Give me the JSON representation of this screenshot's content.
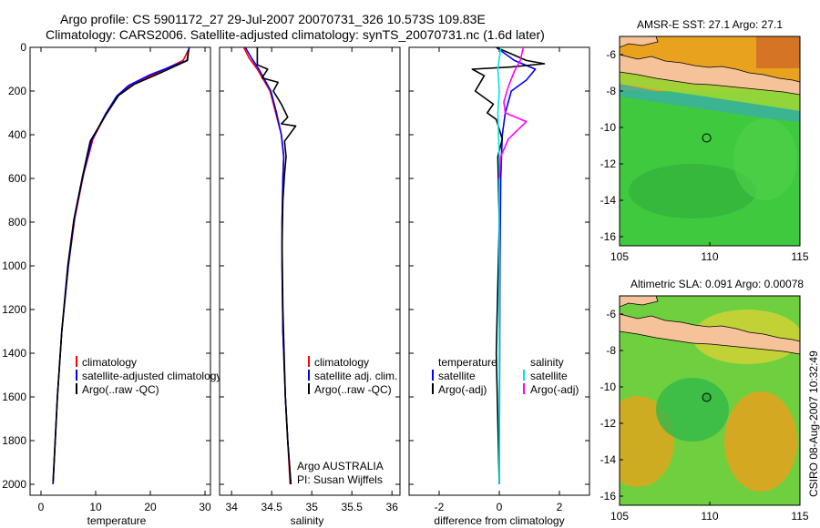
{
  "header": {
    "line1": "Argo profile: CS 5901172_27 29-Jul-2007 20070731_326 10.573S 109.83E",
    "line2": "Climatology: CARS2006. Satellite-adjusted climatology: synTS_20070731.nc (1.6d later)"
  },
  "side_stamp": "CSIRO 08-Aug-2007 10:32:49",
  "colors": {
    "climatology": "#ff0000",
    "satellite": "#0000ff",
    "argo": "#000000",
    "salinity_satellite": "#00e5e5",
    "salinity_argo": "#ff00ff",
    "land": "#f5c29a"
  },
  "chart_data": [
    {
      "type": "line",
      "xlabel": "temperature",
      "xlim": [
        -2,
        31
      ],
      "xticks": [
        0,
        10,
        20,
        30
      ],
      "ylim": [
        0,
        2050
      ],
      "yticks": [
        0,
        200,
        400,
        600,
        800,
        1000,
        1200,
        1400,
        1600,
        1800,
        2000
      ],
      "y_reversed": true,
      "legend": [
        "climatology",
        "satellite-adjusted climatology",
        "Argo(..raw -QC)"
      ],
      "series": [
        {
          "name": "climatology",
          "color": "#ff0000",
          "x": [
            27.2,
            26.0,
            21.0,
            16.5,
            14.0,
            12.0,
            9.5,
            7.8,
            6.2,
            5.0,
            3.8,
            3.0,
            2.6,
            2.2
          ],
          "y": [
            0,
            60,
            120,
            170,
            220,
            300,
            420,
            580,
            780,
            1000,
            1300,
            1600,
            1800,
            2000
          ]
        },
        {
          "name": "satellite-adjusted climatology",
          "color": "#0000ff",
          "x": [
            27.1,
            26.7,
            20.0,
            16.0,
            13.8,
            11.8,
            9.3,
            7.7,
            6.1,
            5.0,
            3.8,
            3.0,
            2.6,
            2.2
          ],
          "y": [
            0,
            60,
            125,
            175,
            225,
            305,
            425,
            585,
            785,
            1000,
            1300,
            1600,
            1800,
            2000
          ]
        },
        {
          "name": "Argo(..raw -QC)",
          "color": "#000000",
          "x": [
            27.0,
            26.8,
            22.0,
            17.0,
            14.2,
            12.1,
            9.0,
            7.6,
            6.0,
            4.9,
            3.8,
            3.0,
            2.6,
            2.2
          ],
          "y": [
            10,
            60,
            115,
            170,
            220,
            300,
            430,
            590,
            790,
            1000,
            1300,
            1600,
            1800,
            1990
          ]
        }
      ]
    },
    {
      "type": "line",
      "xlabel": "salinity",
      "xlim": [
        33.85,
        36.1
      ],
      "xticks": [
        34,
        34.5,
        35,
        35.5,
        36
      ],
      "ylim": [
        0,
        2050
      ],
      "y_reversed": true,
      "legend": [
        "climatology",
        "satellite adj. clim.",
        "Argo(..raw -QC)"
      ],
      "annotation": [
        "Argo AUSTRALIA",
        "PI: Susan Wijffels"
      ],
      "series": [
        {
          "name": "climatology",
          "color": "#ff0000",
          "x": [
            34.15,
            34.22,
            34.32,
            34.48,
            34.55,
            34.62,
            34.65,
            34.64,
            34.63,
            34.63,
            34.64,
            34.67,
            34.7,
            34.73
          ],
          "y": [
            0,
            50,
            100,
            200,
            300,
            400,
            500,
            600,
            800,
            1000,
            1300,
            1600,
            1800,
            2000
          ]
        },
        {
          "name": "satellite adj. clim.",
          "color": "#0000ff",
          "x": [
            34.17,
            34.25,
            34.34,
            34.49,
            34.56,
            34.62,
            34.65,
            34.64,
            34.63,
            34.63,
            34.64,
            34.67,
            34.7,
            34.74
          ],
          "y": [
            0,
            50,
            100,
            200,
            300,
            400,
            500,
            600,
            800,
            1000,
            1300,
            1600,
            1800,
            2000
          ]
        },
        {
          "name": "Argo(..raw -QC)",
          "color": "#000000",
          "x": [
            34.32,
            34.32,
            34.45,
            34.38,
            34.58,
            34.52,
            34.62,
            34.7,
            34.62,
            34.8,
            34.66,
            34.68,
            34.66,
            34.64,
            34.63,
            34.64,
            34.67,
            34.7,
            34.74
          ],
          "y": [
            0,
            80,
            100,
            140,
            160,
            200,
            260,
            320,
            350,
            360,
            430,
            500,
            580,
            700,
            900,
            1200,
            1600,
            1800,
            2000
          ]
        }
      ]
    },
    {
      "type": "line",
      "xlabel": "difference from climatology",
      "xlim": [
        -3,
        3
      ],
      "xticks": [
        -2,
        0,
        2
      ],
      "ylim": [
        0,
        2050
      ],
      "y_reversed": true,
      "legend": {
        "temperature_header": "temperature",
        "salinity_header": "salinity",
        "temperature": [
          "satellite",
          "Argo(-adj)"
        ],
        "salinity": [
          "satellite",
          "Argo(-adj)"
        ]
      },
      "series": [
        {
          "name": "temperature satellite",
          "color": "#0000ff",
          "x": [
            -0.1,
            0.5,
            1.2,
            0.9,
            0.4,
            0.2,
            0.1,
            0.05,
            0.02,
            0.0
          ],
          "y": [
            0,
            60,
            100,
            150,
            200,
            300,
            400,
            600,
            1000,
            2000
          ]
        },
        {
          "name": "temperature Argo(-adj)",
          "color": "#000000",
          "x": [
            -0.1,
            0.9,
            1.5,
            0.4,
            -0.9,
            -0.5,
            -0.8,
            -0.2,
            -0.4,
            -0.1,
            0.1,
            -0.05,
            0.0,
            -0.1,
            0.0
          ],
          "y": [
            0,
            60,
            75,
            90,
            100,
            130,
            200,
            260,
            300,
            330,
            420,
            500,
            800,
            1400,
            2000
          ]
        },
        {
          "name": "salinity satellite",
          "color": "#00e5e5",
          "x": [
            0.05,
            -0.05,
            0.0,
            -0.05,
            0.0,
            0.0,
            0.0,
            0.0
          ],
          "y": [
            0,
            100,
            200,
            300,
            500,
            800,
            1200,
            2000
          ]
        },
        {
          "name": "salinity Argo(-adj)",
          "color": "#ff00ff",
          "x": [
            0.8,
            0.7,
            0.5,
            0.3,
            0.15,
            0.2,
            0.9,
            0.6,
            0.3,
            0.05,
            0.0
          ],
          "y": [
            0,
            60,
            110,
            180,
            250,
            300,
            340,
            380,
            420,
            500,
            600
          ]
        }
      ]
    },
    {
      "type": "heatmap",
      "title": "AMSR-E SST: 27.1 Argo: 27.1",
      "xlim": [
        105,
        115
      ],
      "xticks": [
        105,
        110,
        115
      ],
      "ylim": [
        -16.5,
        -5
      ],
      "yticks": [
        -6,
        -8,
        -10,
        -12,
        -14,
        -16
      ],
      "marker": {
        "lon": 109.83,
        "lat": -10.573
      }
    },
    {
      "type": "heatmap",
      "title": "Altimetric SLA: 0.091 Argo: 0.00078",
      "xlim": [
        105,
        115
      ],
      "xticks": [
        105,
        110,
        115
      ],
      "ylim": [
        -16.5,
        -5
      ],
      "yticks": [
        -6,
        -8,
        -10,
        -12,
        -14,
        -16
      ],
      "marker": {
        "lon": 109.83,
        "lat": -10.573
      }
    }
  ]
}
